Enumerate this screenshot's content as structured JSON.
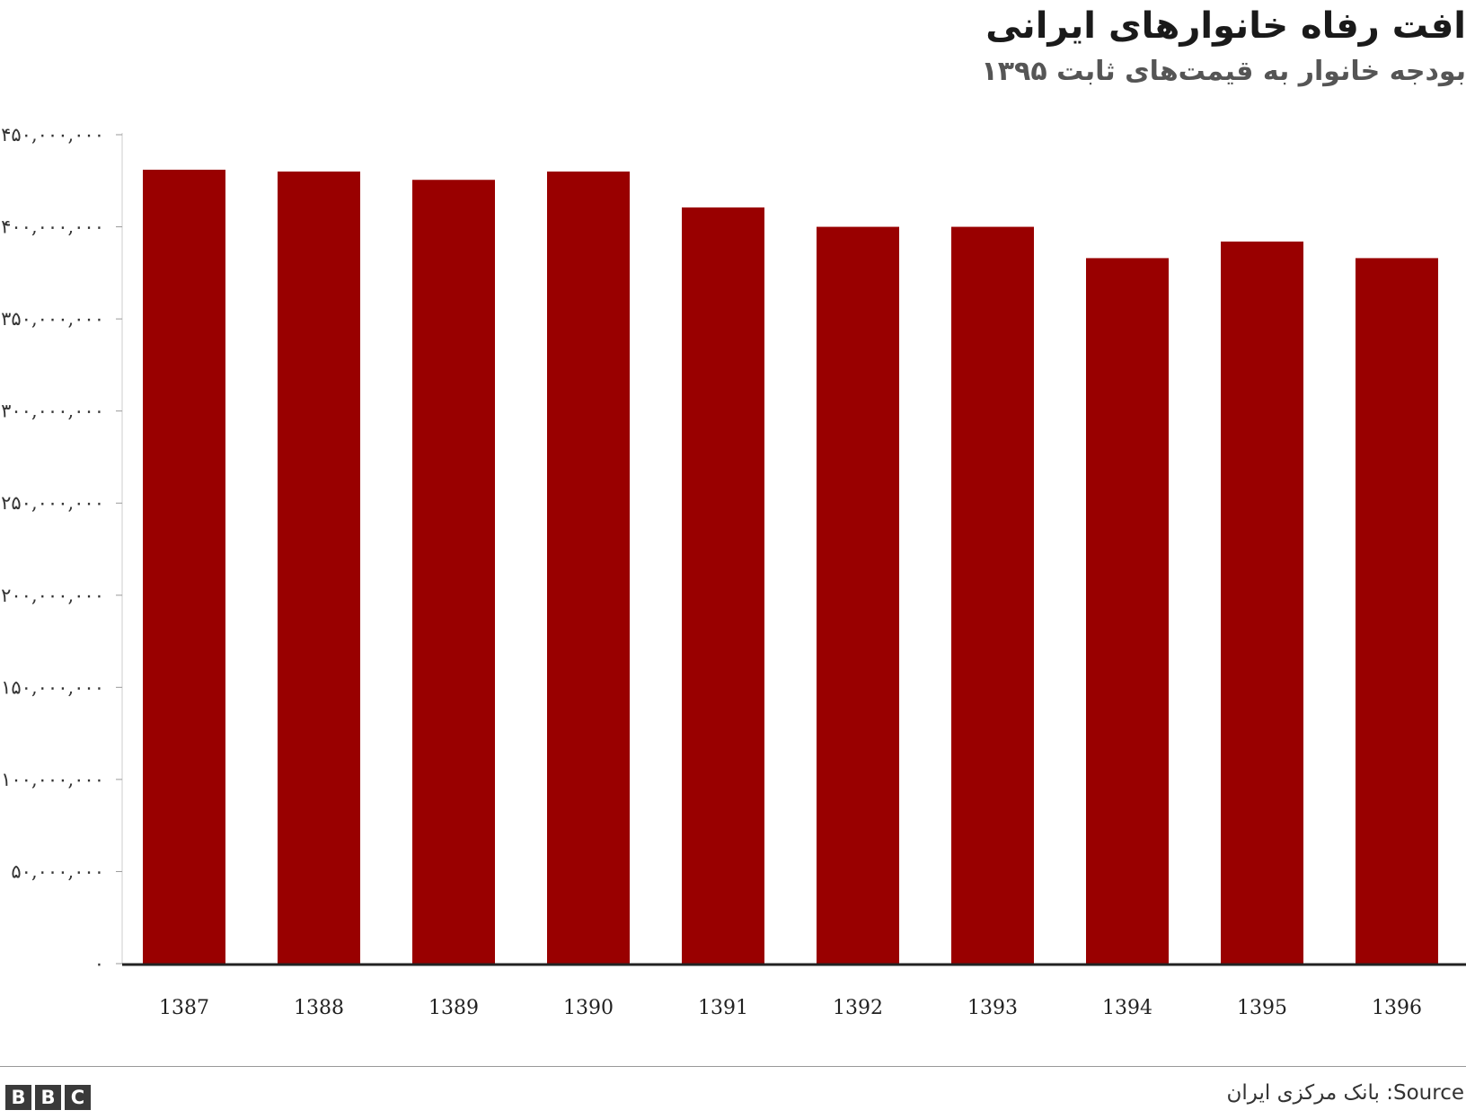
{
  "chart_data": {
    "type": "bar",
    "title": "افت رفاه خانوارهای ایرانی",
    "subtitle": "بودجه خانوار به قیمت‌های ثابت ۱۳۹۵",
    "categories": [
      "1387",
      "1388",
      "1389",
      "1390",
      "1391",
      "1392",
      "1393",
      "1394",
      "1395",
      "1396"
    ],
    "values": [
      431000000,
      430000000,
      425500000,
      430000000,
      410500000,
      400000000,
      400000000,
      383000000,
      392000000,
      383000000
    ],
    "ylim": [
      0,
      450000000
    ],
    "yticks": [
      {
        "value": 0,
        "label": "۰"
      },
      {
        "value": 50000000,
        "label": "۵۰,۰۰۰,۰۰۰"
      },
      {
        "value": 100000000,
        "label": "۱۰۰,۰۰۰,۰۰۰"
      },
      {
        "value": 150000000,
        "label": "۱۵۰,۰۰۰,۰۰۰"
      },
      {
        "value": 200000000,
        "label": "۲۰۰,۰۰۰,۰۰۰"
      },
      {
        "value": 250000000,
        "label": "۲۵۰,۰۰۰,۰۰۰"
      },
      {
        "value": 300000000,
        "label": "۳۰۰,۰۰۰,۰۰۰"
      },
      {
        "value": 350000000,
        "label": "۳۵۰,۰۰۰,۰۰۰"
      },
      {
        "value": 400000000,
        "label": "۴۰۰,۰۰۰,۰۰۰"
      },
      {
        "value": 450000000,
        "label": "۴۵۰,۰۰۰,۰۰۰"
      }
    ],
    "xlabel": "",
    "ylabel": "",
    "grid": false,
    "bar_color": "#990000"
  },
  "footer": {
    "logo_letters": [
      "B",
      "B",
      "C"
    ],
    "source": "Source: بانک مرکزی ایران"
  }
}
